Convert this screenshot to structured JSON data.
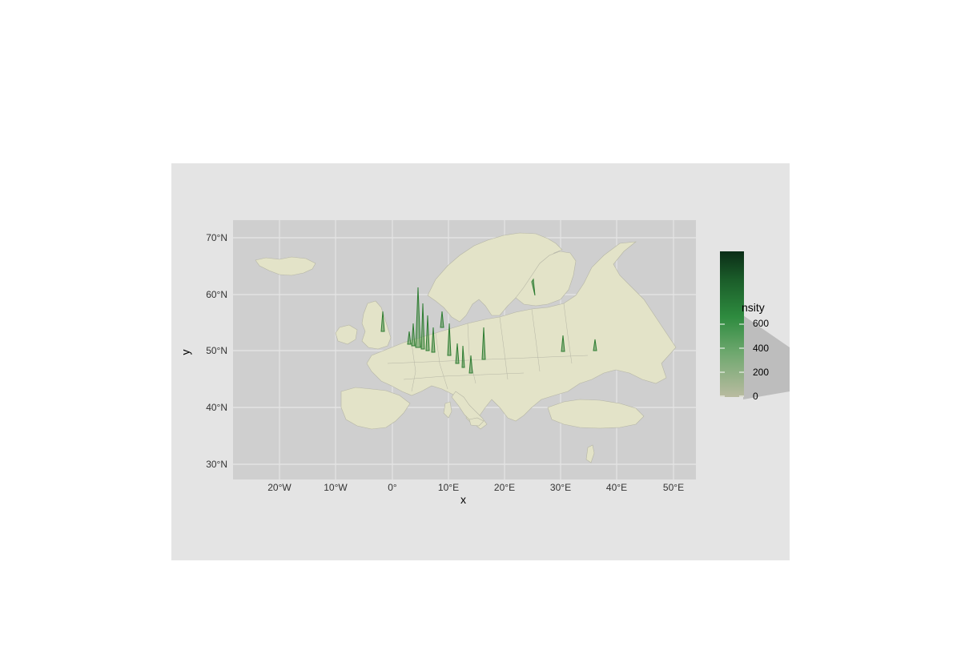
{
  "map": {
    "x_axis_title": "x",
    "y_axis_title": "y",
    "x_ticks": [
      "20°W",
      "10°W",
      "0°",
      "10°E",
      "20°E",
      "30°E",
      "40°E",
      "50°E"
    ],
    "y_ticks": [
      "70°N",
      "60°N",
      "50°N",
      "40°N",
      "30°N"
    ],
    "land_color": "#e3e3c8",
    "panel_color": "#cfcfcf",
    "spike_color": "#2e7d32"
  },
  "legend": {
    "title": "nsity",
    "ticks": [
      "600",
      "400",
      "200",
      "0"
    ],
    "gradient": [
      "#b9bba0",
      "#6fa86f",
      "#2e8b3f",
      "#1b5e2a",
      "#0b2d17"
    ]
  }
}
